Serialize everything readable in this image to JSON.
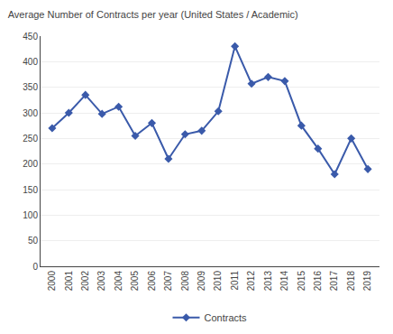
{
  "chart_data": {
    "type": "line",
    "title": "Average Number of Contracts per year (United States / Academic)",
    "x": [
      2000,
      2001,
      2002,
      2003,
      2004,
      2005,
      2006,
      2007,
      2008,
      2009,
      2010,
      2011,
      2012,
      2013,
      2014,
      2015,
      2016,
      2017,
      2018,
      2019
    ],
    "series": [
      {
        "name": "Contracts",
        "color": "#3a5aaa",
        "marker": "diamond",
        "values": [
          270,
          300,
          335,
          298,
          312,
          255,
          280,
          210,
          258,
          265,
          303,
          430,
          357,
          370,
          362,
          275,
          230,
          180,
          250,
          190
        ]
      }
    ],
    "xlim": [
      1999.3,
      2019.7
    ],
    "xticks": [
      2000,
      2001,
      2002,
      2003,
      2004,
      2005,
      2006,
      2007,
      2008,
      2009,
      2010,
      2011,
      2012,
      2013,
      2014,
      2015,
      2016,
      2017,
      2018,
      2019
    ],
    "ylim": [
      0,
      450
    ],
    "yticks": [
      0,
      50,
      100,
      150,
      200,
      250,
      300,
      350,
      400,
      450
    ],
    "grid": true,
    "legend": "bottom"
  }
}
